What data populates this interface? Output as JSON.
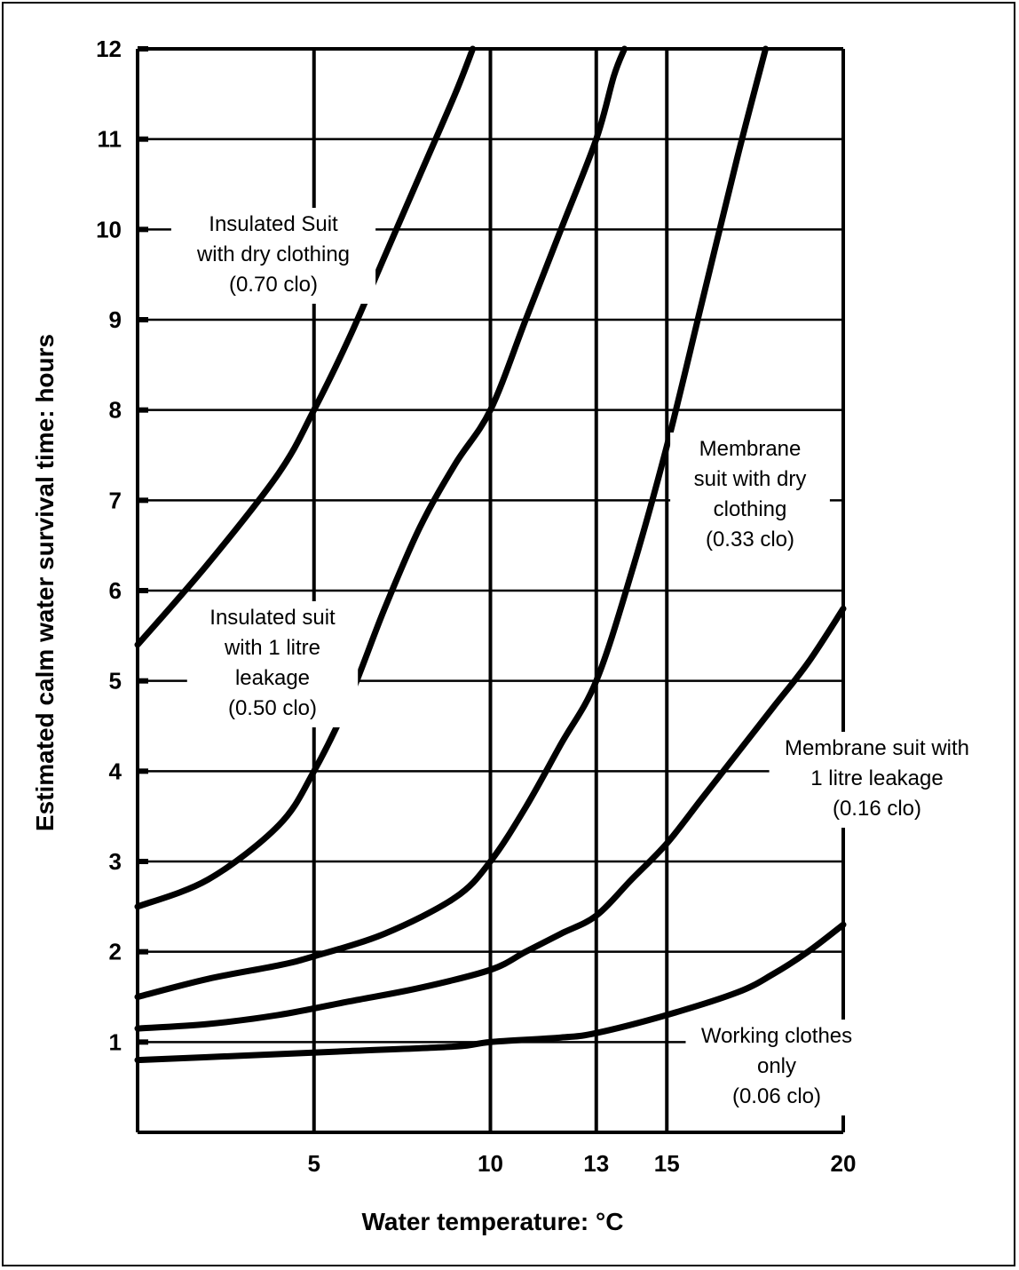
{
  "chart_data": {
    "type": "line",
    "xlabel": "Water temperature: °C",
    "ylabel": "Estimated calm water survival time: hours",
    "xlim": [
      0,
      20
    ],
    "ylim": [
      0,
      12
    ],
    "x_ticks": [
      5,
      10,
      13,
      15,
      20
    ],
    "y_ticks": [
      1,
      2,
      3,
      4,
      5,
      6,
      7,
      8,
      9,
      10,
      11,
      12
    ],
    "grid": true,
    "series": [
      {
        "name": "Insulated Suit with dry clothing (0.70 clo)",
        "points": [
          [
            0,
            5.4
          ],
          [
            2,
            6.3
          ],
          [
            4,
            7.3
          ],
          [
            5,
            8.0
          ],
          [
            6,
            8.8
          ],
          [
            7,
            9.7
          ],
          [
            8,
            10.6
          ],
          [
            9,
            11.5
          ],
          [
            9.5,
            12.0
          ]
        ]
      },
      {
        "name": "Insulated suit with 1 litre leakage (0.50 clo)",
        "points": [
          [
            0,
            2.5
          ],
          [
            2,
            2.8
          ],
          [
            4,
            3.4
          ],
          [
            5,
            4.0
          ],
          [
            6,
            4.8
          ],
          [
            7,
            5.8
          ],
          [
            8,
            6.7
          ],
          [
            9,
            7.4
          ],
          [
            10,
            8.0
          ],
          [
            11,
            9.0
          ],
          [
            12,
            10.0
          ],
          [
            13,
            11.0
          ],
          [
            13.5,
            11.7
          ],
          [
            13.8,
            12.0
          ]
        ]
      },
      {
        "name": "Membrane suit with dry clothing (0.33 clo)",
        "points": [
          [
            0,
            1.5
          ],
          [
            2,
            1.7
          ],
          [
            4,
            1.85
          ],
          [
            5,
            1.95
          ],
          [
            7,
            2.2
          ],
          [
            9,
            2.6
          ],
          [
            10,
            3.0
          ],
          [
            11,
            3.6
          ],
          [
            12,
            4.3
          ],
          [
            13,
            5.0
          ],
          [
            14,
            6.2
          ],
          [
            15,
            7.6
          ],
          [
            16,
            9.2
          ],
          [
            17,
            10.8
          ],
          [
            17.8,
            12.0
          ]
        ]
      },
      {
        "name": "Membrane suit with 1 litre leakage (0.16 clo)",
        "points": [
          [
            0,
            1.15
          ],
          [
            2,
            1.2
          ],
          [
            4,
            1.3
          ],
          [
            6,
            1.45
          ],
          [
            8,
            1.6
          ],
          [
            10,
            1.8
          ],
          [
            11,
            2.0
          ],
          [
            12,
            2.2
          ],
          [
            13,
            2.4
          ],
          [
            14,
            2.8
          ],
          [
            15,
            3.2
          ],
          [
            16,
            3.7
          ],
          [
            17,
            4.2
          ],
          [
            18,
            4.7
          ],
          [
            19,
            5.2
          ],
          [
            20,
            5.8
          ]
        ]
      },
      {
        "name": "Working clothes only (0.06 clo)",
        "points": [
          [
            0,
            0.8
          ],
          [
            3,
            0.85
          ],
          [
            6,
            0.9
          ],
          [
            9,
            0.95
          ],
          [
            10,
            1.0
          ],
          [
            12,
            1.05
          ],
          [
            13,
            1.1
          ],
          [
            15,
            1.3
          ],
          [
            17,
            1.55
          ],
          [
            18,
            1.75
          ],
          [
            19,
            2.0
          ],
          [
            20,
            2.3
          ]
        ]
      }
    ],
    "annotations": [
      {
        "lines": [
          "Insulated Suit",
          "with dry clothing",
          "(0.70 clo)"
        ]
      },
      {
        "lines": [
          "Insulated suit",
          "with 1 litre",
          "leakage",
          "(0.50 clo)"
        ]
      },
      {
        "lines": [
          "Membrane",
          "suit with dry",
          "clothing",
          "(0.33 clo)"
        ]
      },
      {
        "lines": [
          "Membrane suit with",
          "1 litre leakage",
          "(0.16 clo)"
        ]
      },
      {
        "lines": [
          "Working clothes",
          "only",
          "(0.06 clo)"
        ]
      }
    ]
  }
}
